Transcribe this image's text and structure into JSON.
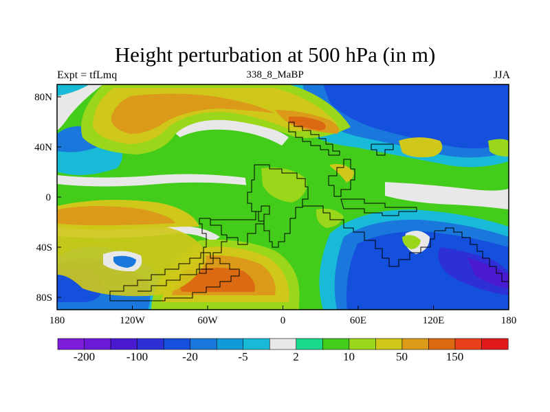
{
  "title": "Height perturbation at 500 hPa (in m)",
  "left_label": "Expt = tfLmq",
  "center_label": "338_8_MaBP",
  "right_label": "JJA",
  "lat_ticks": [
    "80N",
    "40N",
    "0",
    "40S",
    "80S"
  ],
  "lon_ticks": [
    "180",
    "120W",
    "60W",
    "0",
    "60E",
    "120E",
    "180"
  ],
  "colorbar": {
    "colors": [
      "#7c1bd9",
      "#6a1ad6",
      "#4a1ad0",
      "#2c30d6",
      "#1450dc",
      "#1a78dc",
      "#129ad8",
      "#18bad8",
      "#e8e8e8",
      "#18d98c",
      "#44cc1a",
      "#9ad61a",
      "#cfc81a",
      "#dc9a1a",
      "#dc6a12",
      "#e8401a",
      "#e01a1a"
    ],
    "labels": [
      "-200",
      "-100",
      "-20",
      "-5",
      "2",
      "10",
      "50",
      "150"
    ]
  }
}
